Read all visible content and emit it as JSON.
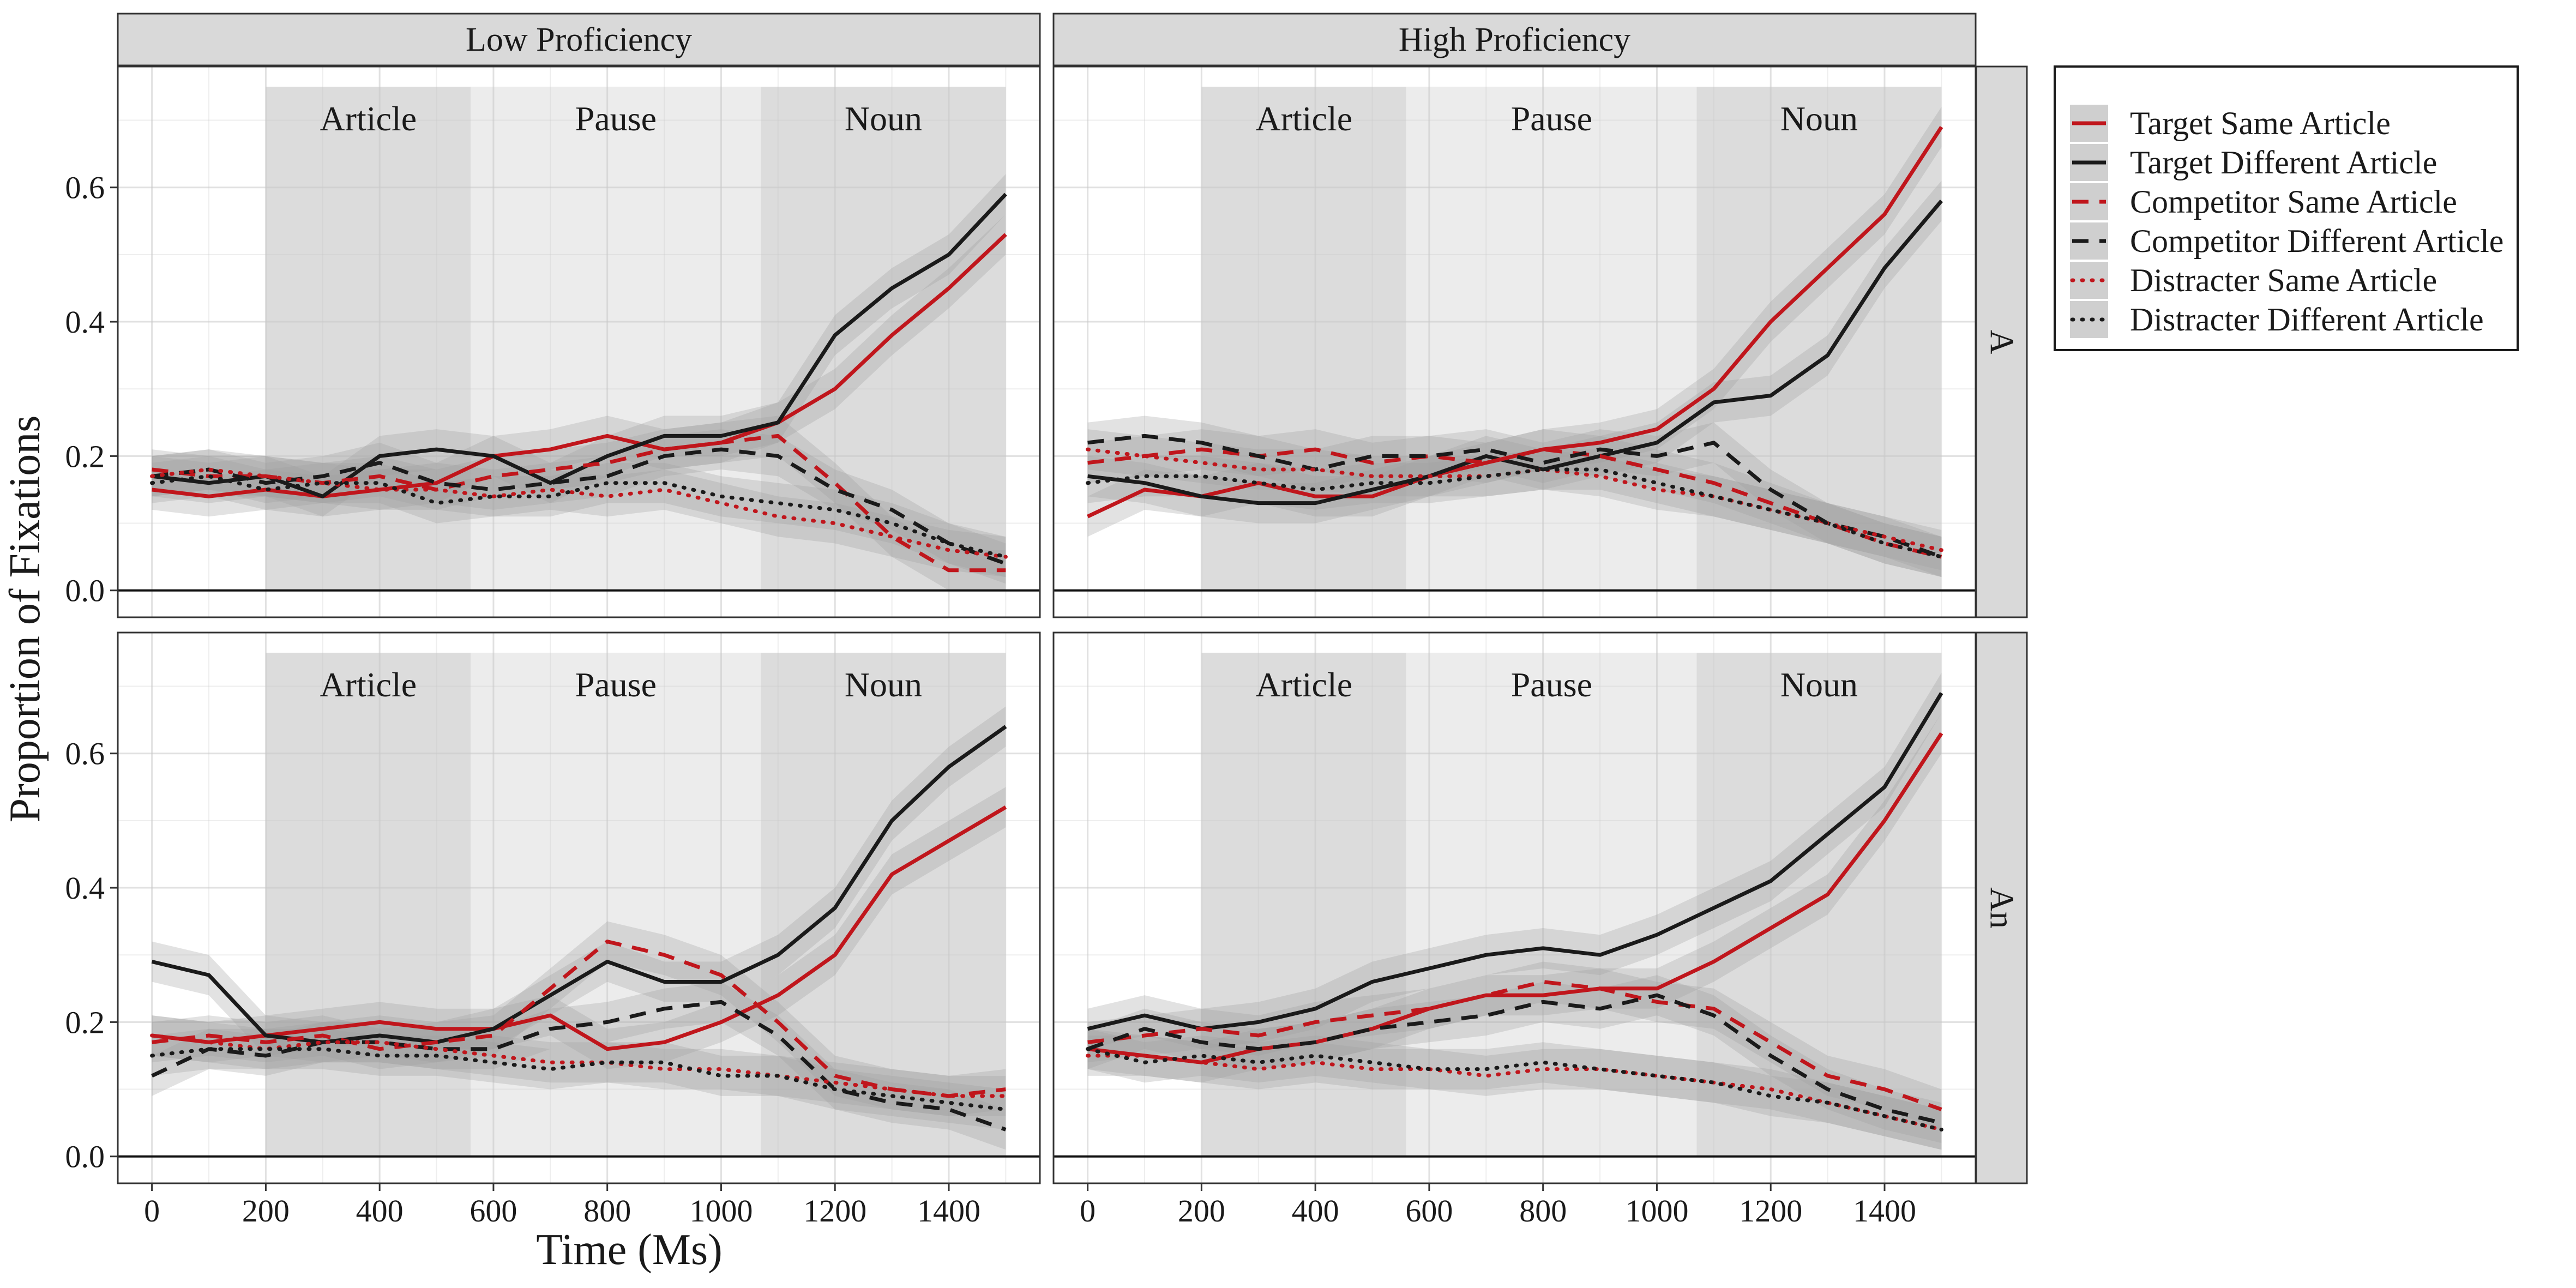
{
  "chart_data": {
    "type": "line",
    "xlabel": "Time (Ms)",
    "ylabel": "Proportion of Fixations",
    "xlim": [
      -60,
      1560
    ],
    "ylim": [
      -0.04,
      0.78
    ],
    "x_ticks": [
      0,
      200,
      400,
      600,
      800,
      1000,
      1200,
      1400
    ],
    "y_ticks": [
      0.0,
      0.2,
      0.4,
      0.6
    ],
    "y_tick_labels": [
      "0.0",
      "0.2",
      "0.4",
      "0.6"
    ],
    "grid": true,
    "columns": [
      "Low Proficiency",
      "High Proficiency"
    ],
    "rows": [
      "A",
      "An"
    ],
    "regions": [
      {
        "label": "Article",
        "start": 200,
        "end": 560,
        "shade": "dark"
      },
      {
        "label": "Pause",
        "start": 560,
        "end": 1070,
        "shade": "light"
      },
      {
        "label": "Noun",
        "start": 1070,
        "end": 1500,
        "shade": "dark"
      }
    ],
    "region_top": 0.75,
    "legend_position": "right",
    "series_styles": [
      {
        "name": "Target Same Article",
        "color": "#c0161c",
        "line": "solid"
      },
      {
        "name": "Target Different Article",
        "color": "#1a1a1a",
        "line": "solid"
      },
      {
        "name": "Competitor Same Article",
        "color": "#c0161c",
        "line": "dashed"
      },
      {
        "name": "Competitor Different Article",
        "color": "#1a1a1a",
        "line": "dashed"
      },
      {
        "name": "Distracter Same Article",
        "color": "#c0161c",
        "line": "dotted"
      },
      {
        "name": "Distracter Different Article",
        "color": "#1a1a1a",
        "line": "dotted"
      }
    ],
    "ribbon_color": "#9e9e9e",
    "ribbon_halfwidth": 0.03,
    "x": [
      0,
      100,
      200,
      300,
      400,
      500,
      600,
      700,
      800,
      900,
      1000,
      1100,
      1200,
      1300,
      1400,
      1500
    ],
    "panels": [
      {
        "column": "Low Proficiency",
        "row": "A",
        "series": [
          {
            "name": "Target Same Article",
            "values": [
              0.15,
              0.14,
              0.15,
              0.14,
              0.15,
              0.16,
              0.2,
              0.21,
              0.23,
              0.21,
              0.22,
              0.25,
              0.3,
              0.38,
              0.45,
              0.53
            ]
          },
          {
            "name": "Target Different Article",
            "values": [
              0.17,
              0.16,
              0.17,
              0.14,
              0.2,
              0.21,
              0.2,
              0.16,
              0.2,
              0.23,
              0.23,
              0.25,
              0.38,
              0.45,
              0.5,
              0.59
            ]
          },
          {
            "name": "Competitor Same Article",
            "values": [
              0.18,
              0.17,
              0.17,
              0.16,
              0.17,
              0.15,
              0.17,
              0.18,
              0.19,
              0.21,
              0.22,
              0.23,
              0.16,
              0.08,
              0.03,
              0.03
            ]
          },
          {
            "name": "Competitor Different Article",
            "values": [
              0.17,
              0.18,
              0.16,
              0.17,
              0.19,
              0.16,
              0.15,
              0.16,
              0.17,
              0.2,
              0.21,
              0.2,
              0.15,
              0.12,
              0.07,
              0.04
            ]
          },
          {
            "name": "Distracter Same Article",
            "values": [
              0.17,
              0.18,
              0.17,
              0.16,
              0.15,
              0.15,
              0.14,
              0.15,
              0.14,
              0.15,
              0.13,
              0.11,
              0.1,
              0.08,
              0.06,
              0.05
            ]
          },
          {
            "name": "Distracter Different Article",
            "values": [
              0.16,
              0.17,
              0.15,
              0.16,
              0.16,
              0.13,
              0.14,
              0.14,
              0.16,
              0.16,
              0.14,
              0.13,
              0.12,
              0.1,
              0.07,
              0.05
            ]
          }
        ]
      },
      {
        "column": "High Proficiency",
        "row": "A",
        "series": [
          {
            "name": "Target Same Article",
            "values": [
              0.11,
              0.15,
              0.14,
              0.16,
              0.14,
              0.14,
              0.17,
              0.19,
              0.21,
              0.22,
              0.24,
              0.3,
              0.4,
              0.48,
              0.56,
              0.69
            ]
          },
          {
            "name": "Target Different Article",
            "values": [
              0.17,
              0.16,
              0.14,
              0.13,
              0.13,
              0.15,
              0.17,
              0.2,
              0.18,
              0.2,
              0.22,
              0.28,
              0.29,
              0.35,
              0.48,
              0.58
            ]
          },
          {
            "name": "Competitor Same Article",
            "values": [
              0.19,
              0.2,
              0.21,
              0.2,
              0.21,
              0.19,
              0.2,
              0.19,
              0.21,
              0.2,
              0.18,
              0.16,
              0.13,
              0.1,
              0.07,
              0.05
            ]
          },
          {
            "name": "Competitor Different Article",
            "values": [
              0.22,
              0.23,
              0.22,
              0.2,
              0.18,
              0.2,
              0.2,
              0.21,
              0.19,
              0.21,
              0.2,
              0.22,
              0.15,
              0.1,
              0.08,
              0.05
            ]
          },
          {
            "name": "Distracter Same Article",
            "values": [
              0.21,
              0.2,
              0.19,
              0.18,
              0.18,
              0.17,
              0.17,
              0.17,
              0.18,
              0.17,
              0.15,
              0.14,
              0.12,
              0.1,
              0.08,
              0.06
            ]
          },
          {
            "name": "Distracter Different Article",
            "values": [
              0.16,
              0.17,
              0.17,
              0.16,
              0.15,
              0.16,
              0.16,
              0.17,
              0.18,
              0.18,
              0.16,
              0.14,
              0.12,
              0.1,
              0.07,
              0.05
            ]
          }
        ]
      },
      {
        "column": "Low Proficiency",
        "row": "An",
        "series": [
          {
            "name": "Target Same Article",
            "values": [
              0.18,
              0.17,
              0.18,
              0.19,
              0.2,
              0.19,
              0.19,
              0.21,
              0.16,
              0.17,
              0.2,
              0.24,
              0.3,
              0.42,
              0.47,
              0.52
            ]
          },
          {
            "name": "Target Different Article",
            "values": [
              0.29,
              0.27,
              0.18,
              0.17,
              0.18,
              0.17,
              0.19,
              0.24,
              0.29,
              0.26,
              0.26,
              0.3,
              0.37,
              0.5,
              0.58,
              0.64
            ]
          },
          {
            "name": "Competitor Same Article",
            "values": [
              0.17,
              0.18,
              0.17,
              0.18,
              0.16,
              0.17,
              0.18,
              0.25,
              0.32,
              0.3,
              0.27,
              0.2,
              0.12,
              0.1,
              0.09,
              0.1
            ]
          },
          {
            "name": "Competitor Different Article",
            "values": [
              0.12,
              0.16,
              0.15,
              0.17,
              0.17,
              0.16,
              0.16,
              0.19,
              0.2,
              0.22,
              0.23,
              0.18,
              0.1,
              0.08,
              0.07,
              0.04
            ]
          },
          {
            "name": "Distracter Same Article",
            "values": [
              0.18,
              0.17,
              0.16,
              0.17,
              0.17,
              0.16,
              0.15,
              0.14,
              0.14,
              0.13,
              0.13,
              0.12,
              0.11,
              0.1,
              0.09,
              0.09
            ]
          },
          {
            "name": "Distracter Different Article",
            "values": [
              0.15,
              0.16,
              0.16,
              0.16,
              0.15,
              0.15,
              0.14,
              0.13,
              0.14,
              0.14,
              0.12,
              0.12,
              0.1,
              0.09,
              0.08,
              0.07
            ]
          }
        ]
      },
      {
        "column": "High Proficiency",
        "row": "An",
        "series": [
          {
            "name": "Target Same Article",
            "values": [
              0.16,
              0.15,
              0.14,
              0.16,
              0.17,
              0.19,
              0.22,
              0.24,
              0.24,
              0.25,
              0.25,
              0.29,
              0.34,
              0.39,
              0.5,
              0.63
            ]
          },
          {
            "name": "Target Different Article",
            "values": [
              0.19,
              0.21,
              0.19,
              0.2,
              0.22,
              0.26,
              0.28,
              0.3,
              0.31,
              0.3,
              0.33,
              0.37,
              0.41,
              0.48,
              0.55,
              0.69
            ]
          },
          {
            "name": "Competitor Same Article",
            "values": [
              0.17,
              0.18,
              0.19,
              0.18,
              0.2,
              0.21,
              0.22,
              0.24,
              0.26,
              0.25,
              0.23,
              0.22,
              0.17,
              0.12,
              0.1,
              0.07
            ]
          },
          {
            "name": "Competitor Different Article",
            "values": [
              0.16,
              0.19,
              0.17,
              0.16,
              0.17,
              0.19,
              0.2,
              0.21,
              0.23,
              0.22,
              0.24,
              0.21,
              0.15,
              0.1,
              0.07,
              0.05
            ]
          },
          {
            "name": "Distracter Same Article",
            "values": [
              0.15,
              0.15,
              0.14,
              0.13,
              0.14,
              0.13,
              0.13,
              0.12,
              0.13,
              0.13,
              0.12,
              0.11,
              0.1,
              0.08,
              0.06,
              0.04
            ]
          },
          {
            "name": "Distracter Different Article",
            "values": [
              0.16,
              0.14,
              0.15,
              0.14,
              0.15,
              0.14,
              0.13,
              0.13,
              0.14,
              0.13,
              0.12,
              0.11,
              0.09,
              0.08,
              0.06,
              0.04
            ]
          }
        ]
      }
    ]
  }
}
